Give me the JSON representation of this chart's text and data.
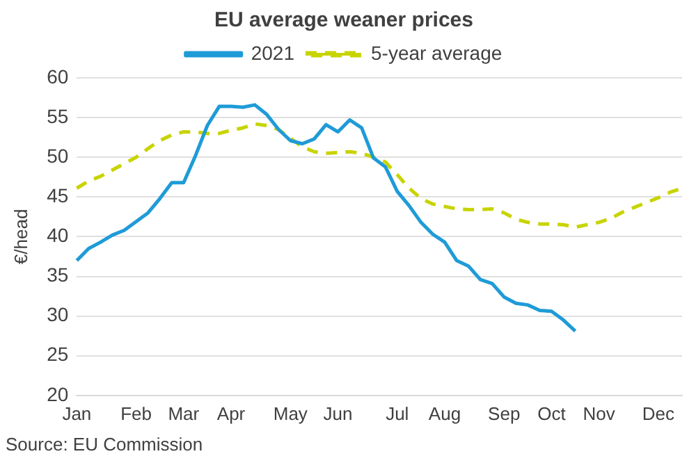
{
  "chart_data": {
    "type": "line",
    "title": "EU average weaner prices",
    "ylabel": "€/head",
    "categories": [
      "Jan",
      null,
      null,
      null,
      null,
      "Feb",
      null,
      null,
      null,
      "Mar",
      null,
      null,
      null,
      "Apr",
      null,
      null,
      null,
      null,
      "May",
      null,
      null,
      null,
      "Jun",
      null,
      null,
      null,
      null,
      "Jul",
      null,
      null,
      null,
      "Aug",
      null,
      null,
      null,
      null,
      "Sep",
      null,
      null,
      null,
      "Oct",
      null,
      null,
      null,
      "Nov",
      null,
      null,
      null,
      null,
      "Dec",
      null,
      null
    ],
    "series": [
      {
        "name": "2021",
        "color": "#1f9bd7",
        "line_style": "solid",
        "values": [
          37.0,
          38.5,
          39.3,
          40.2,
          40.8,
          41.9,
          43.0,
          44.8,
          46.8,
          46.8,
          50.2,
          54.0,
          56.4,
          56.4,
          56.3,
          56.6,
          55.4,
          53.5,
          52.1,
          51.7,
          52.3,
          54.1,
          53.2,
          54.7,
          53.7,
          49.9,
          48.8,
          45.7,
          43.9,
          41.8,
          40.3,
          39.3,
          37.0,
          36.3,
          34.6,
          34.1,
          32.4,
          31.6,
          31.4,
          30.7,
          30.6,
          29.5,
          28.1,
          null,
          null,
          null,
          null,
          null,
          null,
          null,
          null,
          null
        ]
      },
      {
        "name": "5-year average",
        "color": "#c8d400",
        "line_style": "dashed",
        "values": [
          46.1,
          47.0,
          47.6,
          48.4,
          49.2,
          50.0,
          51.1,
          52.1,
          52.8,
          53.2,
          53.2,
          53.0,
          53.0,
          53.4,
          53.7,
          54.2,
          54.0,
          53.5,
          52.4,
          51.3,
          50.7,
          50.5,
          50.6,
          50.7,
          50.5,
          50.0,
          49.4,
          47.8,
          46.1,
          44.8,
          44.1,
          43.8,
          43.5,
          43.4,
          43.4,
          43.5,
          43.0,
          42.2,
          41.8,
          41.6,
          41.6,
          41.5,
          41.2,
          41.5,
          41.8,
          42.3,
          43.1,
          43.7,
          44.3,
          44.9,
          45.6,
          46.1
        ]
      }
    ],
    "ylim": [
      20,
      60
    ],
    "yticks": [
      20,
      25,
      30,
      35,
      40,
      45,
      50,
      55,
      60
    ],
    "grid": "y",
    "legend": "top",
    "marker": "none",
    "annotations": [
      "Source: EU Commission"
    ]
  }
}
